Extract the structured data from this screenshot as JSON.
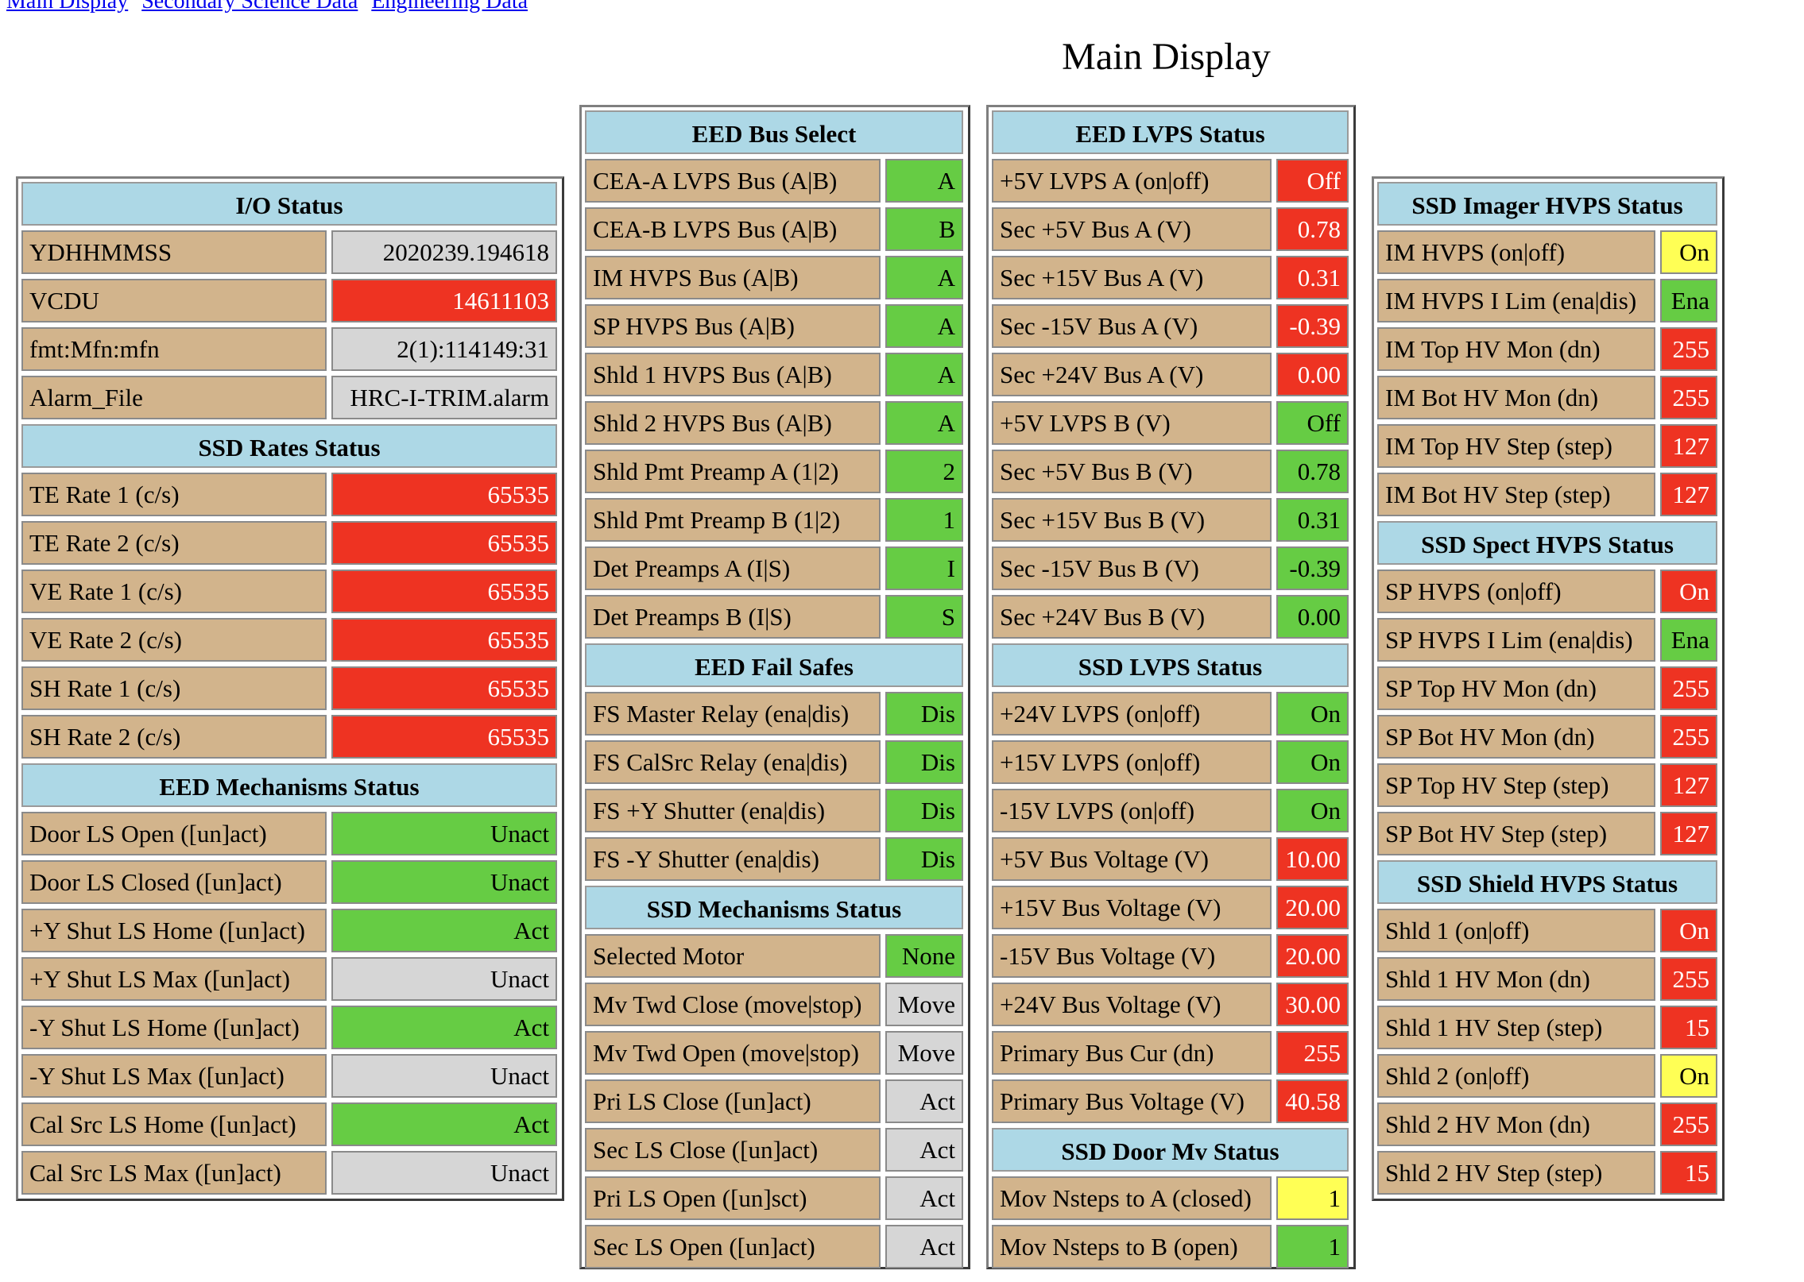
{
  "nav": {
    "links": [
      "Main Display",
      "Secondary Science Data",
      "Engineering Data"
    ]
  },
  "page_title": "Main Display",
  "colors": {
    "header": "#add8e6",
    "label": "#d2b48c",
    "green": "#66cc44",
    "red": "#ee3322",
    "gray": "#d6d6d6",
    "yellow": "#ffff55"
  },
  "columns": [
    [
      {
        "title": "I/O Status",
        "rows": [
          {
            "label": "YDHHMMSS",
            "value": "2020239.194618",
            "status": "gray"
          },
          {
            "label": "VCDU",
            "value": "14611103",
            "status": "red"
          },
          {
            "label": "fmt:Mfn:mfn",
            "value": "2(1):114149:31",
            "status": "gray"
          },
          {
            "label": "Alarm_File",
            "value": "HRC-I-TRIM.alarm",
            "status": "gray"
          }
        ]
      },
      {
        "title": "SSD Rates Status",
        "rows": [
          {
            "label": "TE Rate 1 (c/s)",
            "value": "65535",
            "status": "red"
          },
          {
            "label": "TE Rate 2 (c/s)",
            "value": "65535",
            "status": "red"
          },
          {
            "label": "VE Rate 1 (c/s)",
            "value": "65535",
            "status": "red"
          },
          {
            "label": "VE Rate 2 (c/s)",
            "value": "65535",
            "status": "red"
          },
          {
            "label": "SH Rate 1 (c/s)",
            "value": "65535",
            "status": "red"
          },
          {
            "label": "SH Rate 2 (c/s)",
            "value": "65535",
            "status": "red"
          }
        ]
      },
      {
        "title": "EED Mechanisms Status",
        "rows": [
          {
            "label": "Door LS Open ([un]act)",
            "value": "Unact",
            "status": "green"
          },
          {
            "label": "Door LS Closed ([un]act)",
            "value": "Unact",
            "status": "green"
          },
          {
            "label": "+Y Shut LS Home ([un]act)",
            "value": "Act",
            "status": "green"
          },
          {
            "label": "+Y Shut LS Max ([un]act)",
            "value": "Unact",
            "status": "gray"
          },
          {
            "label": "-Y Shut LS Home ([un]act)",
            "value": "Act",
            "status": "green"
          },
          {
            "label": "-Y Shut LS Max ([un]act)",
            "value": "Unact",
            "status": "gray"
          },
          {
            "label": "Cal Src LS Home ([un]act)",
            "value": "Act",
            "status": "green"
          },
          {
            "label": "Cal Src LS Max ([un]act)",
            "value": "Unact",
            "status": "gray"
          }
        ]
      }
    ],
    [
      {
        "title": "EED Bus Select",
        "rows": [
          {
            "label": "CEA-A LVPS Bus (A|B)",
            "value": "A",
            "status": "green"
          },
          {
            "label": "CEA-B LVPS Bus (A|B)",
            "value": "B",
            "status": "green"
          },
          {
            "label": "IM HVPS Bus (A|B)",
            "value": "A",
            "status": "green"
          },
          {
            "label": "SP HVPS Bus (A|B)",
            "value": "A",
            "status": "green"
          },
          {
            "label": "Shld 1 HVPS Bus (A|B)",
            "value": "A",
            "status": "green"
          },
          {
            "label": "Shld 2 HVPS Bus (A|B)",
            "value": "A",
            "status": "green"
          },
          {
            "label": "Shld Pmt Preamp A (1|2)",
            "value": "2",
            "status": "green"
          },
          {
            "label": "Shld Pmt Preamp B (1|2)",
            "value": "1",
            "status": "green"
          },
          {
            "label": "Det Preamps A (I|S)",
            "value": "I",
            "status": "green"
          },
          {
            "label": "Det Preamps B (I|S)",
            "value": "S",
            "status": "green"
          }
        ]
      },
      {
        "title": "EED Fail Safes",
        "rows": [
          {
            "label": "FS Master Relay (ena|dis)",
            "value": "Dis",
            "status": "green"
          },
          {
            "label": "FS CalSrc Relay (ena|dis)",
            "value": "Dis",
            "status": "green"
          },
          {
            "label": "FS +Y Shutter (ena|dis)",
            "value": "Dis",
            "status": "green"
          },
          {
            "label": "FS -Y Shutter (ena|dis)",
            "value": "Dis",
            "status": "green"
          }
        ]
      },
      {
        "title": "SSD Mechanisms Status",
        "rows": [
          {
            "label": "Selected Motor",
            "value": "None",
            "status": "green"
          },
          {
            "label": "Mv Twd Close (move|stop)",
            "value": "Move",
            "status": "gray"
          },
          {
            "label": "Mv Twd Open (move|stop)",
            "value": "Move",
            "status": "gray"
          },
          {
            "label": "Pri LS Close ([un]act)",
            "value": "Act",
            "status": "gray"
          },
          {
            "label": "Sec LS Close ([un]act)",
            "value": "Act",
            "status": "gray"
          },
          {
            "label": "Pri LS Open ([un]sct)",
            "value": "Act",
            "status": "gray"
          },
          {
            "label": "Sec LS Open ([un]act)",
            "value": "Act",
            "status": "gray"
          }
        ]
      }
    ],
    [
      {
        "title": "EED LVPS Status",
        "rows": [
          {
            "label": "+5V LVPS A (on|off)",
            "value": "Off",
            "status": "red"
          },
          {
            "label": "Sec +5V Bus A (V)",
            "value": "0.78",
            "status": "red"
          },
          {
            "label": "Sec +15V Bus A (V)",
            "value": "0.31",
            "status": "red"
          },
          {
            "label": "Sec -15V Bus A (V)",
            "value": "-0.39",
            "status": "red"
          },
          {
            "label": "Sec +24V Bus A (V)",
            "value": "0.00",
            "status": "red"
          },
          {
            "label": "+5V LVPS B (V)",
            "value": "Off",
            "status": "green"
          },
          {
            "label": "Sec +5V Bus B (V)",
            "value": "0.78",
            "status": "green"
          },
          {
            "label": "Sec +15V Bus B (V)",
            "value": "0.31",
            "status": "green"
          },
          {
            "label": "Sec -15V Bus B (V)",
            "value": "-0.39",
            "status": "green"
          },
          {
            "label": "Sec +24V Bus B (V)",
            "value": "0.00",
            "status": "green"
          }
        ]
      },
      {
        "title": "SSD LVPS Status",
        "rows": [
          {
            "label": "+24V LVPS (on|off)",
            "value": "On",
            "status": "green"
          },
          {
            "label": "+15V LVPS (on|off)",
            "value": "On",
            "status": "green"
          },
          {
            "label": "-15V LVPS (on|off)",
            "value": "On",
            "status": "green"
          },
          {
            "label": "+5V Bus Voltage (V)",
            "value": "10.00",
            "status": "red"
          },
          {
            "label": "+15V Bus Voltage (V)",
            "value": "20.00",
            "status": "red"
          },
          {
            "label": "-15V Bus Voltage (V)",
            "value": "20.00",
            "status": "red"
          },
          {
            "label": "+24V Bus Voltage (V)",
            "value": "30.00",
            "status": "red"
          },
          {
            "label": "Primary Bus Cur (dn)",
            "value": "255",
            "status": "red"
          },
          {
            "label": "Primary Bus Voltage (V)",
            "value": "40.58",
            "status": "red"
          }
        ]
      },
      {
        "title": "SSD Door Mv Status",
        "rows": [
          {
            "label": "Mov Nsteps to A (closed)",
            "value": "1",
            "status": "yellow"
          },
          {
            "label": "Mov Nsteps to B (open)",
            "value": "1",
            "status": "green"
          }
        ]
      }
    ],
    [
      {
        "title": "SSD Imager HVPS Status",
        "rows": [
          {
            "label": "IM HVPS (on|off)",
            "value": "On",
            "status": "yellow"
          },
          {
            "label": "IM HVPS I Lim (ena|dis)",
            "value": "Ena",
            "status": "green"
          },
          {
            "label": "IM Top HV Mon (dn)",
            "value": "255",
            "status": "red"
          },
          {
            "label": "IM Bot HV Mon (dn)",
            "value": "255",
            "status": "red"
          },
          {
            "label": "IM Top HV Step (step)",
            "value": "127",
            "status": "red"
          },
          {
            "label": "IM Bot HV Step (step)",
            "value": "127",
            "status": "red"
          }
        ]
      },
      {
        "title": "SSD Spect HVPS Status",
        "rows": [
          {
            "label": "SP HVPS (on|off)",
            "value": "On",
            "status": "red"
          },
          {
            "label": "SP HVPS I Lim (ena|dis)",
            "value": "Ena",
            "status": "green"
          },
          {
            "label": "SP Top HV Mon (dn)",
            "value": "255",
            "status": "red"
          },
          {
            "label": "SP Bot HV Mon (dn)",
            "value": "255",
            "status": "red"
          },
          {
            "label": "SP Top HV Step (step)",
            "value": "127",
            "status": "red"
          },
          {
            "label": "SP Bot HV Step (step)",
            "value": "127",
            "status": "red"
          }
        ]
      },
      {
        "title": "SSD Shield HVPS Status",
        "rows": [
          {
            "label": "Shld 1 (on|off)",
            "value": "On",
            "status": "red"
          },
          {
            "label": "Shld 1 HV Mon (dn)",
            "value": "255",
            "status": "red"
          },
          {
            "label": "Shld 1 HV Step (step)",
            "value": "15",
            "status": "red"
          },
          {
            "label": "Shld 2 (on|off)",
            "value": "On",
            "status": "yellow"
          },
          {
            "label": "Shld 2 HV Mon (dn)",
            "value": "255",
            "status": "red"
          },
          {
            "label": "Shld 2 HV Step (step)",
            "value": "15",
            "status": "red"
          }
        ]
      }
    ]
  ]
}
